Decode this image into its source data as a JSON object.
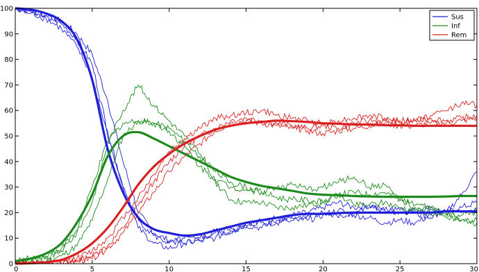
{
  "chart_data": {
    "type": "line",
    "title": "",
    "xlabel": "",
    "ylabel": "",
    "xlim": [
      0,
      30
    ],
    "ylim": [
      0,
      100
    ],
    "xticks": [
      0,
      5,
      10,
      15,
      20,
      25,
      30
    ],
    "yticks": [
      0,
      10,
      20,
      30,
      40,
      50,
      60,
      70,
      80,
      90,
      100
    ],
    "grid": false,
    "legend": {
      "position": "top-right",
      "entries": [
        "Sus",
        "Inf",
        "Rem"
      ]
    },
    "colors": {
      "Sus": "#1f1fd6",
      "Inf": "#1c8a1c",
      "Rem": "#d82020"
    },
    "series": [
      {
        "name": "Sus",
        "role": "mean",
        "color": "#1f1fd6",
        "x": [
          0,
          1,
          2,
          3,
          4,
          5,
          6,
          7,
          8,
          9,
          10,
          11,
          12,
          13,
          14,
          15,
          16,
          17,
          18,
          19,
          20,
          21,
          22,
          23,
          24,
          25,
          26,
          27,
          28,
          29,
          30
        ],
        "values": [
          100,
          99.5,
          98,
          95,
          88,
          72,
          45,
          28,
          18,
          13.5,
          12,
          11,
          11.5,
          13,
          14.5,
          16,
          17,
          18,
          19,
          19.5,
          19.5,
          19.8,
          20,
          20,
          20,
          20,
          20,
          20,
          20.5,
          20.5,
          20.5
        ]
      },
      {
        "name": "Inf",
        "role": "mean",
        "color": "#1c8a1c",
        "x": [
          0,
          1,
          2,
          3,
          4,
          5,
          6,
          7,
          8,
          9,
          10,
          11,
          12,
          13,
          14,
          15,
          16,
          17,
          18,
          19,
          20,
          21,
          22,
          23,
          24,
          25,
          26,
          27,
          28,
          29,
          30
        ],
        "values": [
          1,
          2,
          4,
          8,
          16,
          27,
          42,
          50,
          51.5,
          49,
          46,
          43,
          40,
          37,
          34,
          32,
          30.5,
          29.5,
          28.5,
          27.5,
          27,
          26.8,
          26.5,
          26.3,
          26.2,
          26.2,
          26.2,
          26.2,
          26.3,
          26.5,
          26.5
        ]
      },
      {
        "name": "Rem",
        "role": "mean",
        "color": "#d82020",
        "x": [
          0,
          1,
          2,
          3,
          4,
          5,
          6,
          7,
          8,
          9,
          10,
          11,
          12,
          13,
          14,
          15,
          16,
          17,
          18,
          19,
          20,
          21,
          22,
          23,
          24,
          25,
          26,
          27,
          28,
          29,
          30
        ],
        "values": [
          0,
          0.2,
          0.5,
          1.5,
          4,
          8,
          14,
          22,
          31,
          38,
          43,
          47,
          50,
          52.5,
          54,
          55,
          55.5,
          56,
          55.8,
          55.5,
          55,
          54.8,
          54.5,
          54.5,
          54.2,
          54.2,
          54,
          54,
          54,
          54,
          54
        ]
      },
      {
        "name": "Sus",
        "role": "run",
        "color": "#1f1fd6",
        "x": [
          0,
          1,
          2,
          3,
          4,
          5,
          6,
          7,
          8,
          9,
          10,
          11,
          12,
          13,
          14,
          15,
          16,
          17,
          18,
          19,
          20,
          21,
          22,
          23,
          24,
          25,
          26,
          27,
          28,
          29,
          30
        ],
        "values": [
          100,
          99,
          97,
          94,
          88,
          78,
          52,
          30,
          14,
          8,
          6,
          8,
          9,
          10,
          13,
          15,
          14,
          17,
          18,
          17,
          19,
          21,
          19,
          18,
          16,
          17,
          16,
          19,
          20,
          27,
          36
        ]
      },
      {
        "name": "Sus",
        "role": "run",
        "color": "#1f1fd6",
        "x": [
          0,
          1,
          2,
          3,
          4,
          5,
          6,
          7,
          8,
          9,
          10,
          11,
          12,
          13,
          14,
          15,
          16,
          17,
          18,
          19,
          20,
          21,
          22,
          23,
          24,
          25,
          26,
          27,
          28,
          29,
          30
        ],
        "values": [
          100,
          99,
          97,
          95,
          90,
          82,
          64,
          40,
          20,
          12,
          9,
          8,
          10,
          13,
          12,
          16,
          16,
          16,
          19,
          20,
          22,
          24,
          22,
          23,
          21,
          20,
          21,
          22,
          20,
          22,
          24
        ]
      },
      {
        "name": "Sus",
        "role": "run",
        "color": "#1f1fd6",
        "x": [
          0,
          1,
          2,
          3,
          4,
          5,
          6,
          7,
          8,
          9,
          10,
          11,
          12,
          13,
          14,
          15,
          16,
          17,
          18,
          19,
          20,
          21,
          22,
          23,
          24,
          25,
          26,
          27,
          28,
          29,
          30
        ],
        "values": [
          100,
          98,
          96,
          92,
          85,
          73,
          50,
          30,
          17,
          11,
          8,
          10,
          9,
          12,
          14,
          14,
          17,
          18,
          17,
          19,
          20,
          18,
          20,
          22,
          21,
          21,
          20,
          18,
          20,
          20,
          21
        ]
      },
      {
        "name": "Inf",
        "role": "run",
        "color": "#1c8a1c",
        "x": [
          0,
          1,
          2,
          3,
          4,
          5,
          6,
          7,
          8,
          9,
          10,
          11,
          12,
          13,
          14,
          15,
          16,
          17,
          18,
          19,
          20,
          21,
          22,
          23,
          24,
          25,
          26,
          27,
          28,
          29,
          30
        ],
        "values": [
          0,
          1,
          2,
          5,
          12,
          24,
          47,
          60,
          70,
          62,
          56,
          50,
          43,
          36,
          32,
          30,
          28,
          26,
          25,
          25,
          24,
          27,
          23,
          23,
          24,
          22,
          21,
          20,
          18,
          17,
          17
        ]
      },
      {
        "name": "Inf",
        "role": "run",
        "color": "#1c8a1c",
        "x": [
          0,
          1,
          2,
          3,
          4,
          5,
          6,
          7,
          8,
          9,
          10,
          11,
          12,
          13,
          14,
          15,
          16,
          17,
          18,
          19,
          20,
          21,
          22,
          23,
          24,
          25,
          26,
          27,
          28,
          29,
          30
        ],
        "values": [
          1,
          2,
          3,
          6,
          13,
          30,
          48,
          55,
          56,
          55,
          52,
          46,
          38,
          33,
          30,
          29,
          28,
          30,
          31,
          29,
          30,
          32,
          34,
          30,
          31,
          25,
          23,
          22,
          19,
          19,
          20
        ]
      },
      {
        "name": "Inf",
        "role": "run",
        "color": "#1c8a1c",
        "x": [
          0,
          1,
          2,
          3,
          4,
          5,
          6,
          7,
          8,
          9,
          10,
          11,
          12,
          13,
          14,
          15,
          16,
          17,
          18,
          19,
          20,
          21,
          22,
          23,
          24,
          25,
          26,
          27,
          28,
          29,
          30
        ],
        "values": [
          0,
          1,
          1,
          3,
          7,
          17,
          33,
          50,
          56,
          55,
          53,
          48,
          42,
          32,
          25,
          24,
          24,
          22,
          22,
          23,
          24,
          27,
          28,
          27,
          28,
          25,
          22,
          21,
          20,
          17,
          16
        ]
      },
      {
        "name": "Rem",
        "role": "run",
        "color": "#d82020",
        "x": [
          0,
          1,
          2,
          3,
          4,
          5,
          6,
          7,
          8,
          9,
          10,
          11,
          12,
          13,
          14,
          15,
          16,
          17,
          18,
          19,
          20,
          21,
          22,
          23,
          24,
          25,
          26,
          27,
          28,
          29,
          30
        ],
        "values": [
          0,
          0,
          0,
          1,
          2,
          5,
          10,
          18,
          26,
          35,
          44,
          49,
          53,
          57,
          58,
          59,
          60,
          58,
          57,
          56,
          55,
          56,
          57,
          58,
          57,
          56,
          56,
          58,
          60,
          63,
          62
        ]
      },
      {
        "name": "Rem",
        "role": "run",
        "color": "#d82020",
        "x": [
          0,
          1,
          2,
          3,
          4,
          5,
          6,
          7,
          8,
          9,
          10,
          11,
          12,
          13,
          14,
          15,
          16,
          17,
          18,
          19,
          20,
          21,
          22,
          23,
          24,
          25,
          26,
          27,
          28,
          29,
          30
        ],
        "values": [
          0,
          0,
          0,
          0,
          1,
          3,
          7,
          14,
          23,
          32,
          40,
          46,
          50,
          53,
          56,
          57,
          56,
          55,
          54,
          53,
          54,
          53,
          55,
          56,
          56,
          55,
          56,
          57,
          56,
          57,
          58
        ]
      },
      {
        "name": "Rem",
        "role": "run",
        "color": "#d82020",
        "x": [
          0,
          1,
          2,
          3,
          4,
          5,
          6,
          7,
          8,
          9,
          10,
          11,
          12,
          13,
          14,
          15,
          16,
          17,
          18,
          19,
          20,
          21,
          22,
          23,
          24,
          25,
          26,
          27,
          28,
          29,
          30
        ],
        "values": [
          0,
          0,
          0,
          0,
          1,
          2,
          6,
          12,
          20,
          28,
          36,
          42,
          47,
          52,
          55,
          56,
          55,
          54,
          53,
          52,
          51,
          52,
          53,
          54,
          55,
          54,
          54,
          55,
          55,
          56,
          57
        ]
      }
    ]
  }
}
